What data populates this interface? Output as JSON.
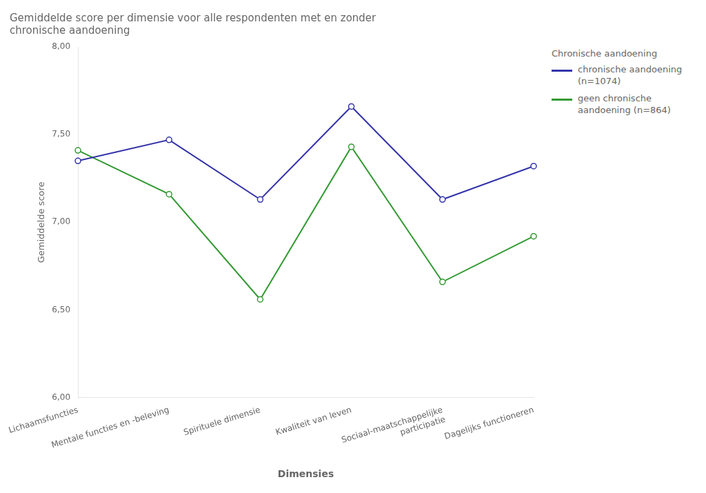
{
  "chart_data": {
    "type": "line",
    "title": "Gemiddelde score per dimensie voor alle respondenten met en zonder\nchronische aandoening",
    "x_label": "Dimensies",
    "y_label": "Gemiddelde score",
    "categories": [
      "Lichaamsfuncties",
      "Mentale functies en -beleving",
      "Spirituele dimensie",
      "Kwaliteit van leven",
      "Sociaal-maatschappelijke\nparticipatie",
      "Dagelijks functioneren"
    ],
    "series": [
      {
        "name": "chronische aandoening (n=1074)",
        "color": "#3333aa",
        "marker": "circle",
        "values": [
          7.35,
          7.47,
          7.13,
          7.66,
          7.13,
          7.32
        ]
      },
      {
        "name": "geen chronische\naandoening (n=864)",
        "color": "#339933",
        "marker": "circle",
        "values": [
          7.41,
          7.16,
          6.56,
          7.43,
          6.66,
          6.92
        ]
      }
    ],
    "legend_title": "Chronische aandoening",
    "legend": "right",
    "ylim": [
      6.0,
      8.0
    ],
    "yticks": [
      {
        "value": 6.0,
        "label": "6,00"
      },
      {
        "value": 6.5,
        "label": "6,50"
      },
      {
        "value": 7.0,
        "label": "7,00"
      },
      {
        "value": 7.5,
        "label": "7,50"
      },
      {
        "value": 8.0,
        "label": "8,00"
      }
    ],
    "grid": false
  }
}
